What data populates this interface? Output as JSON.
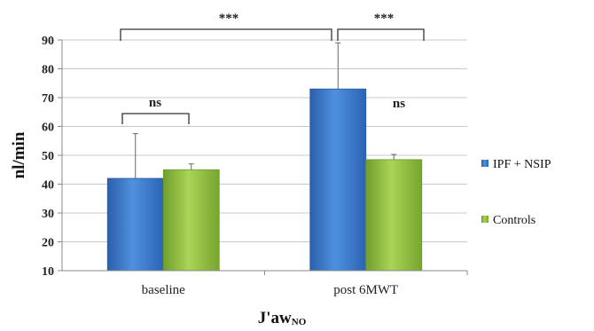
{
  "chart_data": {
    "type": "bar",
    "categories": [
      "baseline",
      "post 6MWT"
    ],
    "series": [
      {
        "name": "IPF + NSIP",
        "values": [
          42,
          73
        ],
        "errors": [
          15.5,
          16
        ],
        "color": "#3a78c8"
      },
      {
        "name": "Controls",
        "values": [
          45,
          48.5
        ],
        "errors": [
          2,
          1.8
        ],
        "color": "#92c13f"
      }
    ],
    "ylabel": "nl/min",
    "xlabel_main": "J'aw",
    "xlabel_sub": "NO",
    "ylim": [
      10,
      90
    ],
    "yticks": [
      10,
      20,
      30,
      40,
      50,
      60,
      70,
      80,
      90
    ],
    "grid": true,
    "legend_position": "right",
    "annotations": {
      "ns_baseline": "ns",
      "ns_post": "ns",
      "sig_across": "***",
      "sig_post": "***"
    }
  }
}
